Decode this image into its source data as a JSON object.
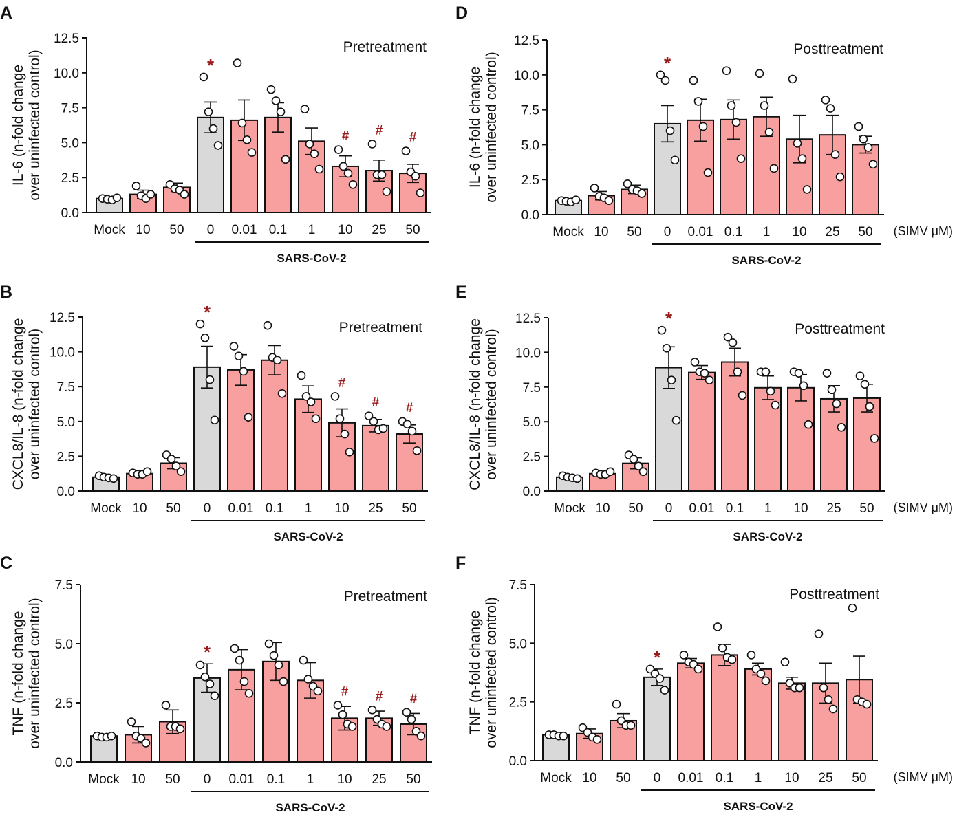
{
  "figure": {
    "colors": {
      "mock_bar": "#d9d9d9",
      "treated_bar": "#f8a09f",
      "axis": "#111111",
      "marker": "#9a1b1b"
    },
    "categories": [
      "Mock",
      "10",
      "50",
      "0",
      "0.01",
      "0.1",
      "1",
      "10",
      "25",
      "50"
    ],
    "group_label": "SARS-CoV-2",
    "unit_label": "(SIMV μM)"
  },
  "chart_data": [
    {
      "panel": "A",
      "type": "bar",
      "title": "Pretreatment",
      "ylabel_lines": [
        "IL-6 (n-fold change",
        "over uninfected control)"
      ],
      "ylim": [
        0,
        12.5
      ],
      "yticks": [
        "0.0",
        "2.5",
        "5.0",
        "7.5",
        "10.0",
        "12.5"
      ],
      "categories": [
        "Mock",
        "10",
        "50",
        "0",
        "0.01",
        "0.1",
        "1",
        "10",
        "25",
        "50"
      ],
      "values": [
        1.0,
        1.3,
        1.8,
        6.8,
        6.6,
        6.8,
        5.1,
        3.3,
        3.0,
        2.8
      ],
      "errors": [
        0.1,
        0.3,
        0.3,
        1.1,
        1.45,
        1.05,
        0.95,
        0.75,
        0.75,
        0.65
      ],
      "points": [
        [
          1.0,
          0.95,
          0.9,
          1.05
        ],
        [
          1.9,
          1.2,
          1.0,
          1.3
        ],
        [
          2.0,
          1.7,
          1.6,
          1.3
        ],
        [
          9.7,
          7.2,
          6.0,
          4.8
        ],
        [
          10.7,
          6.4,
          5.2,
          4.3
        ],
        [
          8.8,
          8.0,
          7.2,
          3.8
        ],
        [
          7.4,
          4.9,
          4.2,
          3.1
        ],
        [
          4.5,
          3.3,
          2.8,
          2.0
        ],
        [
          4.9,
          2.7,
          2.7,
          1.5
        ],
        [
          4.4,
          2.9,
          2.6,
          1.4
        ]
      ],
      "markers": [
        "",
        "",
        "",
        "*",
        "",
        "",
        "",
        "#",
        "#",
        "#"
      ],
      "show_unit": false
    },
    {
      "panel": "B",
      "type": "bar",
      "title": "Pretreatment",
      "ylabel_lines": [
        "CXCL8/IL-8 (n-fold change",
        "over uninfected control)"
      ],
      "ylim": [
        0,
        12.5
      ],
      "yticks": [
        "0.0",
        "2.5",
        "5.0",
        "7.5",
        "10.0",
        "12.5"
      ],
      "categories": [
        "Mock",
        "10",
        "50",
        "0",
        "0.01",
        "0.1",
        "1",
        "10",
        "25",
        "50"
      ],
      "values": [
        1.0,
        1.25,
        2.0,
        8.9,
        8.7,
        9.4,
        6.6,
        4.9,
        4.7,
        4.1
      ],
      "errors": [
        0.05,
        0.15,
        0.4,
        1.5,
        1.1,
        1.05,
        0.95,
        1.0,
        0.45,
        0.65
      ],
      "points": [
        [
          1.1,
          1.0,
          0.95,
          0.9
        ],
        [
          1.3,
          1.2,
          1.2,
          1.4
        ],
        [
          2.6,
          2.3,
          1.8,
          1.4
        ],
        [
          12.0,
          11.0,
          8.0,
          5.1
        ],
        [
          10.4,
          9.7,
          8.6,
          5.3
        ],
        [
          11.9,
          9.6,
          9.4,
          7.0
        ],
        [
          8.3,
          6.8,
          6.4,
          5.2
        ],
        [
          6.8,
          5.2,
          4.1,
          2.8
        ],
        [
          5.4,
          5.0,
          4.4,
          4.5
        ],
        [
          5.0,
          4.8,
          4.3,
          2.9
        ]
      ],
      "markers": [
        "",
        "",
        "",
        "*",
        "",
        "",
        "",
        "#",
        "#",
        "#"
      ],
      "show_unit": false
    },
    {
      "panel": "C",
      "type": "bar",
      "title": "Pretreatment",
      "ylabel_lines": [
        "TNF (n-fold change",
        "over uninfected control)"
      ],
      "ylim": [
        0,
        7.5
      ],
      "yticks": [
        "0.0",
        "2.5",
        "5.0",
        "7.5"
      ],
      "categories": [
        "Mock",
        "10",
        "50",
        "0",
        "0.01",
        "0.1",
        "1",
        "10",
        "25",
        "50"
      ],
      "values": [
        1.1,
        1.15,
        1.7,
        3.55,
        3.9,
        4.25,
        3.45,
        1.85,
        1.85,
        1.6
      ],
      "errors": [
        0.03,
        0.35,
        0.5,
        0.6,
        0.85,
        0.8,
        0.75,
        0.5,
        0.3,
        0.45
      ],
      "points": [
        [
          1.1,
          1.05,
          1.05,
          1.1
        ],
        [
          1.7,
          1.1,
          1.0,
          0.8
        ],
        [
          2.4,
          1.5,
          1.5,
          1.4
        ],
        [
          4.1,
          3.6,
          3.3,
          2.8
        ],
        [
          4.8,
          4.3,
          3.4,
          2.9
        ],
        [
          5.0,
          4.5,
          4.1,
          3.4
        ],
        [
          4.3,
          3.5,
          3.2,
          3.0
        ],
        [
          2.4,
          2.0,
          1.6,
          1.5
        ],
        [
          2.2,
          1.8,
          1.6,
          1.5
        ],
        [
          2.1,
          1.8,
          1.3,
          1.1
        ]
      ],
      "markers": [
        "",
        "",
        "",
        "*",
        "",
        "",
        "",
        "#",
        "#",
        "#"
      ],
      "show_unit": false
    },
    {
      "panel": "D",
      "type": "bar",
      "title": "Posttreatment",
      "ylabel_lines": [
        "IL-6 (n-fold change",
        "over uninfected control)"
      ],
      "ylim": [
        0,
        12.5
      ],
      "yticks": [
        "0.0",
        "2.5",
        "5.0",
        "7.5",
        "10.0",
        "12.5"
      ],
      "categories": [
        "Mock",
        "10",
        "50",
        "0",
        "0.01",
        "0.1",
        "1",
        "10",
        "25",
        "50"
      ],
      "values": [
        1.0,
        1.35,
        1.8,
        6.5,
        6.75,
        6.8,
        7.0,
        5.4,
        5.7,
        5.0
      ],
      "errors": [
        0.1,
        0.3,
        0.3,
        1.3,
        1.5,
        1.4,
        1.4,
        1.7,
        1.4,
        0.6
      ],
      "points": [
        [
          1.0,
          0.95,
          0.9,
          1.05
        ],
        [
          1.9,
          1.3,
          1.2,
          1.0
        ],
        [
          2.2,
          1.8,
          1.7,
          1.5
        ],
        [
          10.0,
          9.6,
          6.0,
          3.9
        ],
        [
          9.6,
          8.1,
          6.3,
          3.0
        ],
        [
          10.3,
          7.8,
          6.6,
          4.0
        ],
        [
          10.1,
          7.8,
          5.9,
          3.3
        ],
        [
          9.7,
          5.1,
          4.0,
          1.8
        ],
        [
          8.2,
          7.6,
          4.3,
          2.7
        ],
        [
          6.3,
          5.4,
          4.8,
          3.6
        ]
      ],
      "markers": [
        "",
        "",
        "",
        "*",
        "",
        "",
        "",
        "",
        "",
        ""
      ],
      "show_unit": true
    },
    {
      "panel": "E",
      "type": "bar",
      "title": "Posttreatment",
      "ylabel_lines": [
        "CXCL8/IL-8 (n-fold change",
        "over uninfected control)"
      ],
      "ylim": [
        0,
        12.5
      ],
      "yticks": [
        "0.0",
        "2.5",
        "5.0",
        "7.5",
        "10.0",
        "12.5"
      ],
      "categories": [
        "Mock",
        "10",
        "50",
        "0",
        "0.01",
        "0.1",
        "1",
        "10",
        "25",
        "50"
      ],
      "values": [
        1.0,
        1.25,
        2.0,
        8.9,
        8.55,
        9.3,
        7.45,
        7.45,
        6.65,
        6.7
      ],
      "errors": [
        0.05,
        0.1,
        0.4,
        1.5,
        0.5,
        1.0,
        0.85,
        0.95,
        0.95,
        1.0
      ],
      "points": [
        [
          1.1,
          1.0,
          0.95,
          0.9
        ],
        [
          1.3,
          1.2,
          1.2,
          1.4
        ],
        [
          2.6,
          2.3,
          1.8,
          1.4
        ],
        [
          11.6,
          10.3,
          8.0,
          5.1
        ],
        [
          9.3,
          8.6,
          8.5,
          8.0
        ],
        [
          11.1,
          10.7,
          8.6,
          6.9
        ],
        [
          8.6,
          8.6,
          7.2,
          6.2
        ],
        [
          8.6,
          8.5,
          7.6,
          4.8
        ],
        [
          8.5,
          7.3,
          6.3,
          4.6
        ],
        [
          8.3,
          7.7,
          6.1,
          3.8
        ]
      ],
      "markers": [
        "",
        "",
        "",
        "*",
        "",
        "",
        "",
        "",
        "",
        ""
      ],
      "show_unit": true
    },
    {
      "panel": "F",
      "type": "bar",
      "title": "Posttreatment",
      "ylabel_lines": [
        "TNF (n-fold change",
        "over uninfected control)"
      ],
      "ylim": [
        0,
        7.5
      ],
      "yticks": [
        "0.0",
        "2.5",
        "5.0",
        "7.5"
      ],
      "categories": [
        "Mock",
        "10",
        "50",
        "0",
        "0.01",
        "0.1",
        "1",
        "10",
        "25",
        "50"
      ],
      "values": [
        1.1,
        1.15,
        1.7,
        3.55,
        4.15,
        4.5,
        3.9,
        3.3,
        3.3,
        3.45
      ],
      "errors": [
        0.03,
        0.2,
        0.3,
        0.35,
        0.2,
        0.45,
        0.25,
        0.25,
        0.85,
        1.0
      ],
      "points": [
        [
          1.1,
          1.1,
          1.05,
          1.05
        ],
        [
          1.4,
          1.2,
          1.0,
          0.9
        ],
        [
          2.4,
          1.7,
          1.5,
          1.5
        ],
        [
          3.9,
          3.7,
          3.5,
          3.0
        ],
        [
          4.5,
          4.2,
          4.1,
          3.9
        ],
        [
          5.7,
          4.8,
          4.4,
          4.3
        ],
        [
          4.5,
          3.9,
          3.7,
          3.4
        ],
        [
          4.2,
          3.3,
          3.1,
          3.1
        ],
        [
          5.4,
          3.1,
          2.6,
          2.2
        ],
        [
          6.5,
          2.6,
          2.5,
          2.4
        ]
      ],
      "markers": [
        "",
        "",
        "",
        "*",
        "",
        "",
        "",
        "",
        "",
        ""
      ],
      "show_unit": true
    }
  ]
}
